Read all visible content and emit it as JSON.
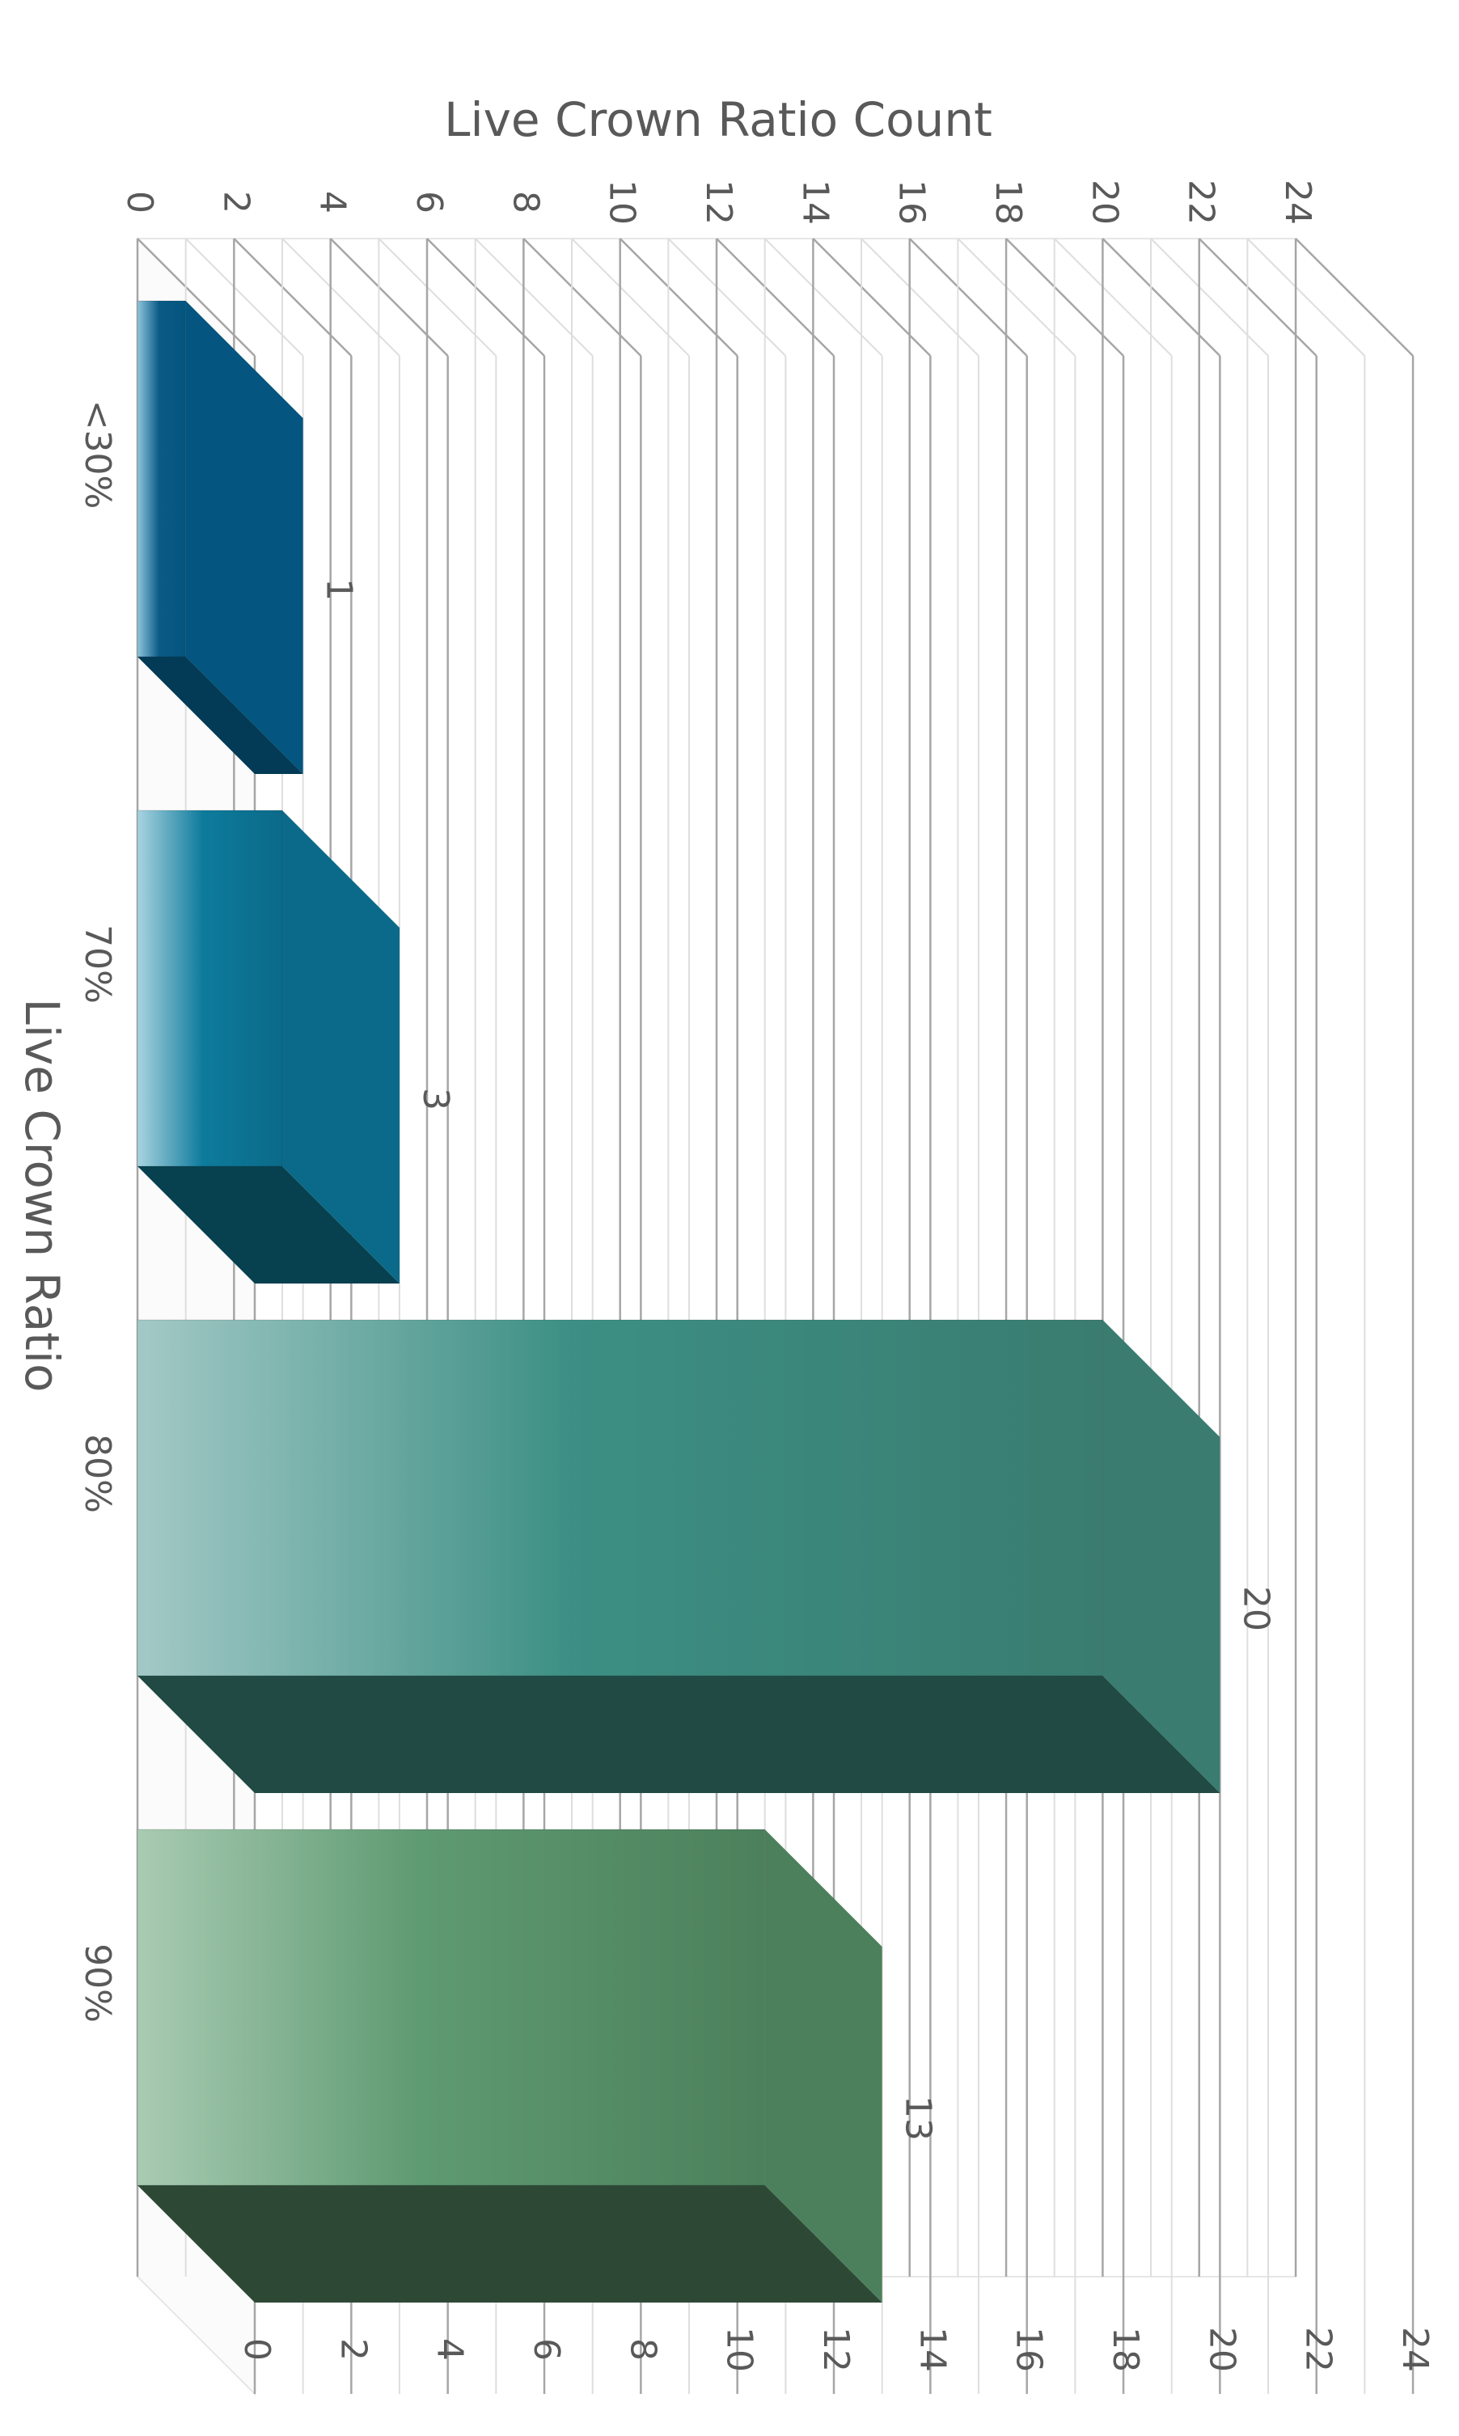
{
  "chart_data": {
    "type": "bar",
    "orientation": "3d-clustered-column, image rotated 90 degrees clockwise",
    "title": "",
    "xlabel": "Live Crown Ratio",
    "ylabel": "Live Crown Ratio Count",
    "categories": [
      "<30%",
      "70%",
      "80%",
      "90%"
    ],
    "values": [
      1,
      3,
      20,
      13
    ],
    "data_labels": [
      "1",
      "3",
      "20",
      "13"
    ],
    "ylim": [
      0,
      24
    ],
    "tick_step": 2,
    "y_ticks": [
      "0",
      "2",
      "4",
      "6",
      "8",
      "10",
      "12",
      "14",
      "16",
      "18",
      "20",
      "22",
      "24"
    ],
    "grid": true,
    "legend": "none",
    "bar_colors": [
      {
        "front_light": "#8fc4dc",
        "front": "#0a5a86",
        "side": "#04557f",
        "bottom": "#033a55"
      },
      {
        "front_light": "#a9d3e0",
        "front": "#0e7b9c",
        "side": "#0b6a89",
        "bottom": "#07404f"
      },
      {
        "front_light": "#a3c9c6",
        "front": "#3c8f84",
        "side": "#3a7c70",
        "bottom": "#204a43"
      },
      {
        "front_light": "#a9cbb2",
        "front": "#5e9a72",
        "side": "#4c805c",
        "bottom": "#2d4936"
      }
    ]
  }
}
